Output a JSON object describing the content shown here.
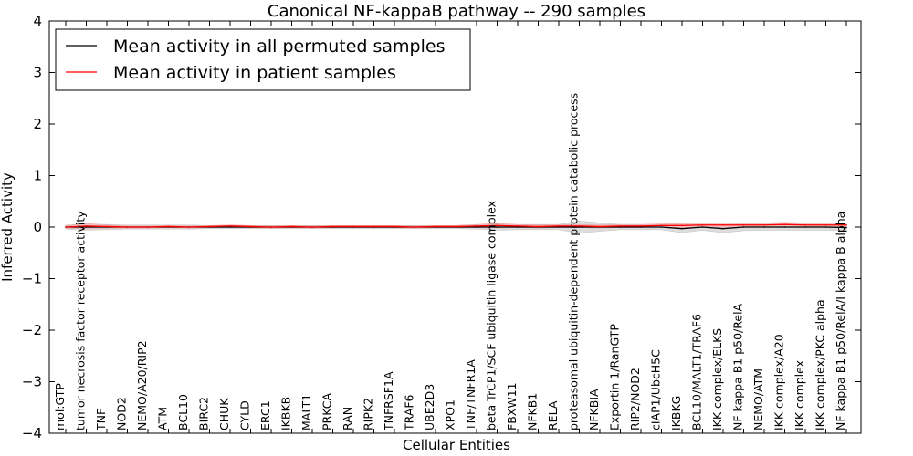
{
  "chart_data": {
    "type": "line",
    "title": "Canonical NF-kappaB pathway -- 290 samples",
    "xlabel": "Cellular Entities",
    "ylabel": "Inferred Activity",
    "ylim": [
      -4,
      4
    ],
    "yticks": [
      -4,
      -3,
      -2,
      -1,
      0,
      1,
      2,
      3,
      4
    ],
    "ytick_labels": [
      "−4",
      "−3",
      "−2",
      "−1",
      "0",
      "1",
      "2",
      "3",
      "4"
    ],
    "legend_position": "top-left",
    "categories": [
      "mol:GTP",
      "tumor necrosis factor receptor activity",
      "TNF",
      "NOD2",
      "NEMO/A20/RIP2",
      "ATM",
      "BCL10",
      "BIRC2",
      "CHUK",
      "CYLD",
      "ERC1",
      "IKBKB",
      "MALT1",
      "PRKCA",
      "RAN",
      "RIPK2",
      "TNFRSF1A",
      "TRAF6",
      "UBE2D3",
      "XPO1",
      "TNF/TNFR1A",
      "beta TrCP1/SCF ubiquitin ligase complex",
      "FBXW11",
      "NFKB1",
      "RELA",
      "proteasomal ubiquitin-dependent protein catabolic process",
      "NFKBIA",
      "Exportin 1/RanGTP",
      "RIP2/NOD2",
      "cIAP1/UbcH5C",
      "IKBKG",
      "BCL10/MALT1/TRAF6",
      "IKK complex/ELKS",
      "NF kappa B1 p50/RelA",
      "NEMO/ATM",
      "IKK complex/A20",
      "IKK complex",
      "IKK complex/PKC alpha",
      "NF kappa B1 p50/RelA/I kappa B alpha"
    ],
    "series": [
      {
        "name": "Mean activity in all permuted samples",
        "color": "#000000",
        "values": [
          0,
          0,
          0,
          0,
          0,
          0,
          0,
          0,
          0,
          0,
          0,
          0,
          0,
          0,
          0,
          0,
          0,
          0,
          0,
          0,
          0,
          0,
          0,
          0,
          0,
          0,
          0,
          0,
          0,
          0,
          -0.03,
          0,
          -0.03,
          0,
          0,
          0,
          0,
          0,
          -0.01
        ],
        "band": [
          0.04,
          0.06,
          0.05,
          0.04,
          0.04,
          0.04,
          0.04,
          0.03,
          0.03,
          0.03,
          0.03,
          0.03,
          0.03,
          0.03,
          0.03,
          0.03,
          0.03,
          0.03,
          0.03,
          0.03,
          0.04,
          0.06,
          0.05,
          0.05,
          0.05,
          0.12,
          0.08,
          0.05,
          0.05,
          0.05,
          0.08,
          0.06,
          0.08,
          0.07,
          0.06,
          0.06,
          0.06,
          0.06,
          0.06
        ],
        "band_color": "#d9d9d9"
      },
      {
        "name": "Mean activity in patient samples",
        "color": "#ff0000",
        "values": [
          0,
          0.02,
          0.01,
          0,
          0,
          0.01,
          0,
          0.01,
          0.02,
          0.01,
          0,
          0.01,
          0,
          0.01,
          0.01,
          0.01,
          0.01,
          0,
          0.01,
          0.01,
          0.02,
          0.03,
          0.02,
          0.01,
          0.02,
          0.02,
          0.01,
          0.02,
          0.02,
          0.03,
          0.03,
          0.04,
          0.04,
          0.04,
          0.04,
          0.05,
          0.04,
          0.04,
          0.04
        ],
        "band": [
          0.02,
          0.05,
          0.03,
          0.02,
          0.02,
          0.02,
          0.02,
          0.02,
          0.02,
          0.02,
          0.02,
          0.02,
          0.02,
          0.02,
          0.02,
          0.02,
          0.02,
          0.02,
          0.02,
          0.02,
          0.03,
          0.04,
          0.03,
          0.03,
          0.03,
          0.03,
          0.03,
          0.03,
          0.03,
          0.03,
          0.04,
          0.04,
          0.04,
          0.04,
          0.04,
          0.04,
          0.04,
          0.04,
          0.04
        ],
        "band_color": "#f4b8b8"
      }
    ]
  }
}
